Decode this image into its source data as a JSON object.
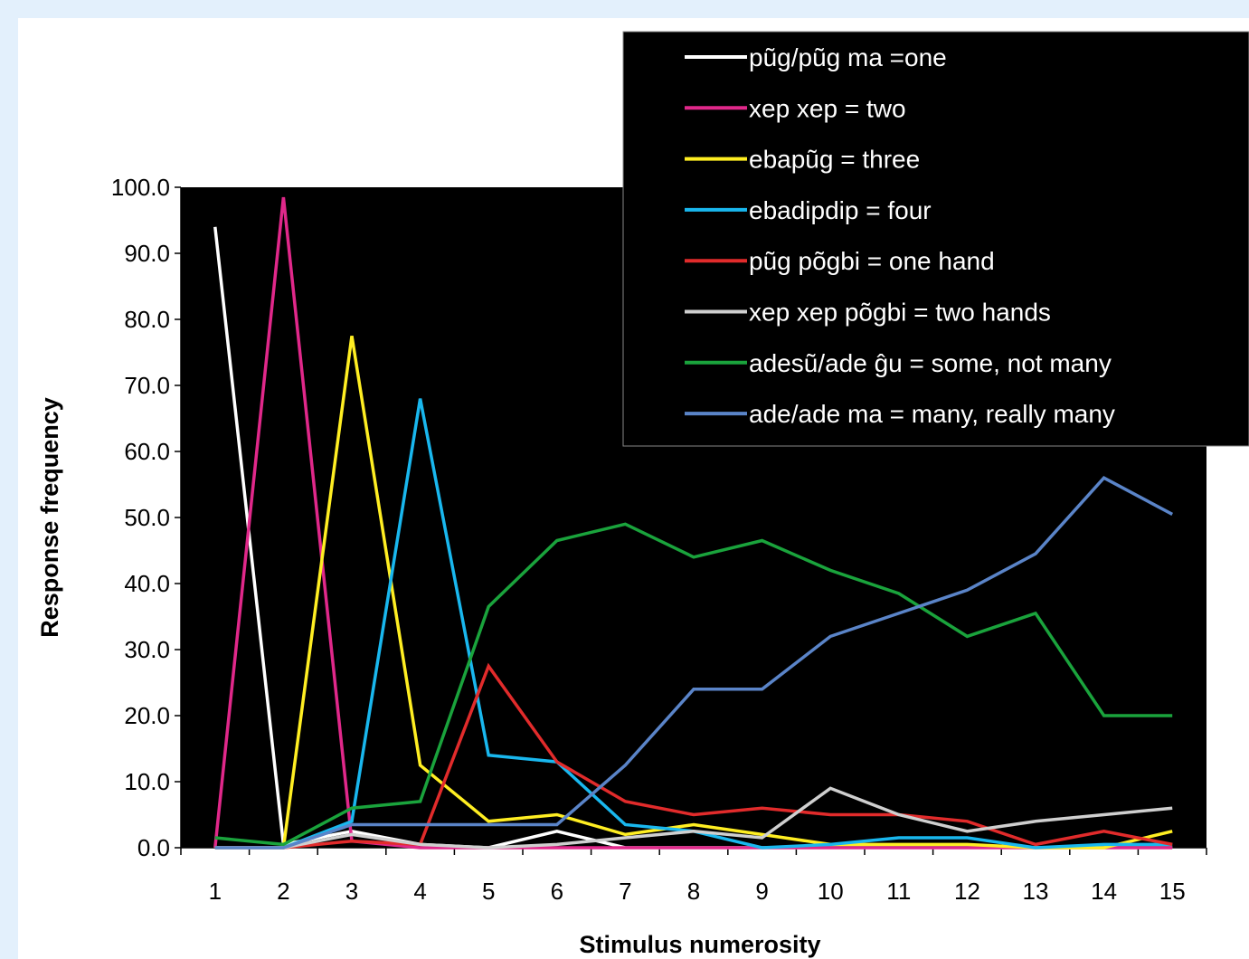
{
  "chart_data": {
    "type": "line",
    "xlabel": "Stimulus numerosity",
    "ylabel": "Response frequency",
    "ylim": [
      0,
      100
    ],
    "y_ticks": [
      "0.0",
      "10.0",
      "20.0",
      "30.0",
      "40.0",
      "50.0",
      "60.0",
      "70.0",
      "80.0",
      "90.0",
      "100.0"
    ],
    "x": [
      1,
      2,
      3,
      4,
      5,
      6,
      7,
      8,
      9,
      10,
      11,
      12,
      13,
      14,
      15
    ],
    "x_ticks": [
      "1",
      "2",
      "3",
      "4",
      "5",
      "6",
      "7",
      "8",
      "9",
      "10",
      "11",
      "12",
      "13",
      "14",
      "15"
    ],
    "legend_position": "top-right",
    "plot_background": "#000000",
    "series": [
      {
        "name": "pũg/pũg ma =one",
        "color": "#ffffff",
        "values": [
          94,
          0.5,
          2.5,
          0.5,
          0,
          2.5,
          0,
          0,
          0,
          0,
          0,
          0,
          0,
          0,
          0
        ]
      },
      {
        "name": "xep xep = two",
        "color": "#e0288a",
        "values": [
          0,
          98.5,
          1,
          0,
          0,
          0,
          0,
          0,
          0,
          0,
          0,
          0,
          0,
          0,
          0
        ]
      },
      {
        "name": "ebapũg = three",
        "color": "#ffee22",
        "values": [
          0,
          0,
          77.5,
          12.5,
          4,
          5,
          2,
          3.5,
          2,
          0.5,
          0.5,
          0.5,
          0,
          0,
          2.5
        ]
      },
      {
        "name": "ebadipdip = four",
        "color": "#19b7ee",
        "values": [
          0,
          0,
          4,
          68,
          14,
          13,
          3.5,
          2.5,
          0,
          0.5,
          1.5,
          1.5,
          0,
          0.5,
          0.5
        ]
      },
      {
        "name": "pũg põgbi = one hand",
        "color": "#e12b2b",
        "values": [
          0,
          0,
          1,
          0.5,
          27.5,
          13,
          7,
          5,
          6,
          5,
          5,
          4,
          0.5,
          2.5,
          0.5
        ]
      },
      {
        "name": "xep xep põgbi = two hands",
        "color": "#cfcfcf",
        "values": [
          0,
          0,
          2,
          0.5,
          0,
          0.5,
          1.5,
          2.5,
          1.5,
          9,
          5,
          2.5,
          4,
          5,
          6
        ]
      },
      {
        "name": "adesũ/ade ĝu = some, not many",
        "color": "#1aa33c",
        "values": [
          1.5,
          0.5,
          6,
          7,
          36.5,
          46.5,
          49,
          44,
          46.5,
          42,
          38.5,
          32,
          35.5,
          20,
          20
        ]
      },
      {
        "name": "ade/ade ma = many, really many",
        "color": "#5a84c8",
        "values": [
          0,
          0,
          3.5,
          3.5,
          3.5,
          3.5,
          12.5,
          24,
          24,
          32,
          35.5,
          39,
          44.5,
          56,
          50.5
        ]
      }
    ]
  }
}
